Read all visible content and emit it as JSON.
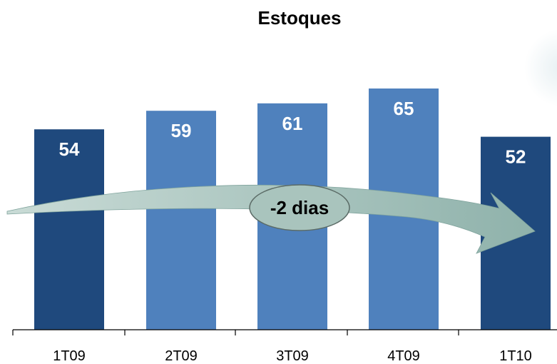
{
  "chart_data": {
    "type": "bar",
    "title": "Estoques",
    "categories": [
      "1T09",
      "2T09",
      "3T09",
      "4T09",
      "1T10"
    ],
    "values": [
      54,
      59,
      61,
      65,
      52
    ],
    "bar_colors": [
      "#1f497d",
      "#4f81bd",
      "#4f81bd",
      "#4f81bd",
      "#1f497d"
    ],
    "xlabel": "",
    "ylabel": "",
    "ylim": [
      0,
      90
    ],
    "grid": false,
    "legend": "none",
    "annotation": {
      "text": "-2 dias",
      "arrow_color": "#9bbbb5",
      "bubble_color": "#a9c4bd"
    }
  }
}
